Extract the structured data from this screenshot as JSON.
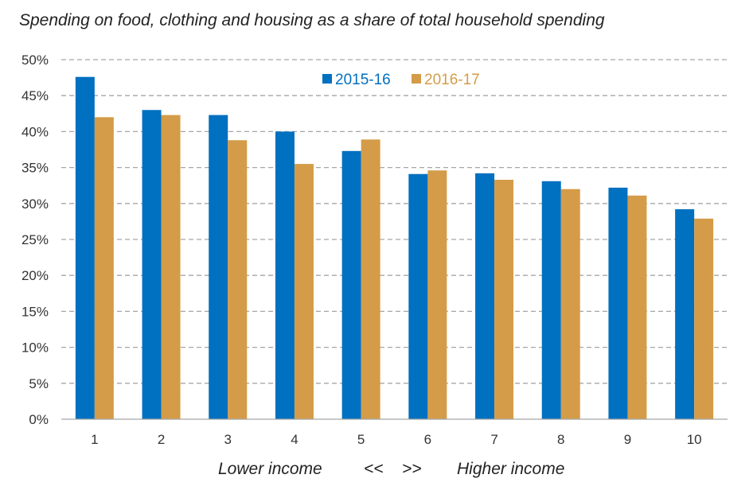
{
  "title": "Spending on food, clothing and housing as a share of total household spending",
  "footer": {
    "lower": "Lower income",
    "arrows_left": "<<",
    "arrows_right": ">>",
    "higher": "Higher income"
  },
  "colors": {
    "series_2015": "#0070c0",
    "series_2016": "#d49c48",
    "grid": "#a6a6a6",
    "axis": "#a6a6a6"
  },
  "chart_data": {
    "type": "bar",
    "title": "Spending on food, clothing and housing as a share of total household spending",
    "xlabel": "",
    "ylabel": "",
    "categories": [
      "1",
      "2",
      "3",
      "4",
      "5",
      "6",
      "7",
      "8",
      "9",
      "10"
    ],
    "series": [
      {
        "name": "2015-16",
        "values": [
          47.6,
          43.0,
          42.3,
          40.0,
          37.3,
          34.1,
          34.2,
          33.1,
          32.2,
          29.2
        ]
      },
      {
        "name": "2016-17",
        "values": [
          42.0,
          42.3,
          38.8,
          35.5,
          38.9,
          34.6,
          33.3,
          32.0,
          31.1,
          27.9
        ]
      }
    ],
    "ylim": [
      0,
      50
    ],
    "yticks": [
      "0%",
      "5%",
      "10%",
      "15%",
      "20%",
      "25%",
      "30%",
      "35%",
      "40%",
      "45%",
      "50%"
    ],
    "grid": true,
    "legend_position": "top-center"
  }
}
